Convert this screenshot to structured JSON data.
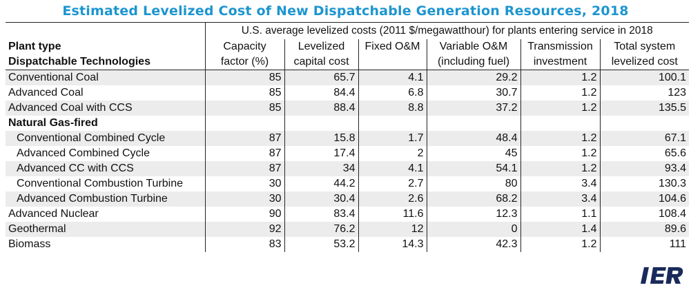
{
  "title": "Estimated Levelized Cost of New Dispatchable Generation Resources, 2018",
  "supertitle": "U.S. average levelized costs (2011 $/megawatthour) for plants entering service in 2018",
  "row_header_1": "Plant type",
  "row_header_2": "Dispatchable Technologies",
  "columns": [
    {
      "line1": "Capacity",
      "line2": "factor (%)"
    },
    {
      "line1": "Levelized",
      "line2": "capital cost"
    },
    {
      "line1": "Fixed O&M",
      "line2": ""
    },
    {
      "line1": "Variable O&M",
      "line2": "(including fuel)"
    },
    {
      "line1": "Transmission",
      "line2": "investment"
    },
    {
      "line1": "Total system",
      "line2": "levelized cost"
    }
  ],
  "rows": [
    {
      "label": "Conventional Coal",
      "values": [
        "85",
        "65.7",
        "4.1",
        "29.2",
        "1.2",
        "100.1"
      ]
    },
    {
      "label": "Advanced Coal",
      "values": [
        "85",
        "84.4",
        "6.8",
        "30.7",
        "1.2",
        "123"
      ]
    },
    {
      "label": "Advanced Coal with CCS",
      "values": [
        "85",
        "88.4",
        "8.8",
        "37.2",
        "1.2",
        "135.5"
      ]
    },
    {
      "label": "Natural Gas-fired",
      "values": [
        "",
        "",
        "",
        "",
        "",
        ""
      ]
    },
    {
      "label": "Conventional Combined Cycle",
      "values": [
        "87",
        "15.8",
        "1.7",
        "48.4",
        "1.2",
        "67.1"
      ]
    },
    {
      "label": "Advanced Combined Cycle",
      "values": [
        "87",
        "17.4",
        "2",
        "45",
        "1.2",
        "65.6"
      ]
    },
    {
      "label": "Advanced CC with CCS",
      "values": [
        "87",
        "34",
        "4.1",
        "54.1",
        "1.2",
        "93.4"
      ]
    },
    {
      "label": "Conventional Combustion Turbine",
      "values": [
        "30",
        "44.2",
        "2.7",
        "80",
        "3.4",
        "130.3"
      ]
    },
    {
      "label": "Advanced Combustion Turbine",
      "values": [
        "30",
        "30.4",
        "2.6",
        "68.2",
        "3.4",
        "104.6"
      ]
    },
    {
      "label": "Advanced Nuclear",
      "values": [
        "90",
        "83.4",
        "11.6",
        "12.3",
        "1.1",
        "108.4"
      ]
    },
    {
      "label": "Geothermal",
      "values": [
        "92",
        "76.2",
        "12",
        "0",
        "1.4",
        "89.6"
      ]
    },
    {
      "label": "Biomass",
      "values": [
        "83",
        "53.2",
        "14.3",
        "42.3",
        "1.2",
        "111"
      ]
    }
  ],
  "logo_text": "IER",
  "colors": {
    "title": "#1d95cf",
    "row_shade": "#ececec",
    "logo": "#1a2a5a"
  }
}
